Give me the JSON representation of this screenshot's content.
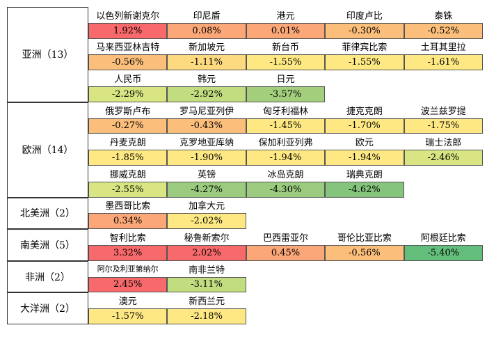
{
  "colors": {
    "red": "#f8696b",
    "orange": "#fba777",
    "light_orange": "#fbbf7b",
    "yellow": "#fde883",
    "yellow_green": "#d9e582",
    "green": "#9bcb7f",
    "mid_green": "#84c47c",
    "dark_green": "#63be7b"
  },
  "regions": [
    {
      "label": "亚洲（13）",
      "rows": [
        [
          {
            "name": "以色列新谢克尔",
            "value": "1.92%",
            "color": "#f8696b"
          },
          {
            "name": "印尼盾",
            "value": "0.08%",
            "color": "#fba777"
          },
          {
            "name": "港元",
            "value": "0.01%",
            "color": "#fba777"
          },
          {
            "name": "印度卢比",
            "value": "-0.30%",
            "color": "#fbbf7b"
          },
          {
            "name": "泰铢",
            "value": "-0.52%",
            "color": "#fbbf7b"
          }
        ],
        [
          {
            "name": "马来西亚林吉特",
            "value": "-0.56%",
            "color": "#fbbf7b"
          },
          {
            "name": "新加坡元",
            "value": "-1.11%",
            "color": "#fdd980"
          },
          {
            "name": "新台币",
            "value": "-1.55%",
            "color": "#fde883"
          },
          {
            "name": "菲律宾比索",
            "value": "-1.55%",
            "color": "#fde883"
          },
          {
            "name": "土耳其里拉",
            "value": "-1.61%",
            "color": "#fde883"
          }
        ],
        [
          {
            "name": "人民币",
            "value": "-2.29%",
            "color": "#d9e582"
          },
          {
            "name": "韩元",
            "value": "-2.92%",
            "color": "#c2dc80"
          },
          {
            "name": "日元",
            "value": "-3.57%",
            "color": "#a3cf7d"
          }
        ]
      ]
    },
    {
      "label": "欧洲（14）",
      "rows": [
        [
          {
            "name": "俄罗斯卢布",
            "value": "-0.27%",
            "color": "#fbbf7b"
          },
          {
            "name": "罗马尼亚列伊",
            "value": "-0.43%",
            "color": "#fbbf7b"
          },
          {
            "name": "匈牙利福林",
            "value": "-1.45%",
            "color": "#fde883"
          },
          {
            "name": "捷克克朗",
            "value": "-1.70%",
            "color": "#fde883"
          },
          {
            "name": "波兰兹罗提",
            "value": "-1.75%",
            "color": "#fde883"
          }
        ],
        [
          {
            "name": "丹麦克朗",
            "value": "-1.85%",
            "color": "#fde883"
          },
          {
            "name": "克罗地亚库纳",
            "value": "-1.90%",
            "color": "#fde883"
          },
          {
            "name": "保加利亚列弗",
            "value": "-1.94%",
            "color": "#fde883"
          },
          {
            "name": "欧元",
            "value": "-1.94%",
            "color": "#fde883"
          },
          {
            "name": "瑞士法郎",
            "value": "-2.46%",
            "color": "#d9e582"
          }
        ],
        [
          {
            "name": "挪威克朗",
            "value": "-2.55%",
            "color": "#d9e582"
          },
          {
            "name": "英镑",
            "value": "-4.27%",
            "color": "#9bcb7f"
          },
          {
            "name": "冰岛克朗",
            "value": "-4.30%",
            "color": "#9bcb7f"
          },
          {
            "name": "瑞典克朗",
            "value": "-4.62%",
            "color": "#84c47c"
          }
        ]
      ]
    },
    {
      "label": "北美洲（2）",
      "rows": [
        [
          {
            "name": "墨西哥比索",
            "value": "0.34%",
            "color": "#fba777"
          },
          {
            "name": "加拿大元",
            "value": "-2.02%",
            "color": "#fde883"
          }
        ]
      ]
    },
    {
      "label": "南美洲（5）",
      "rows": [
        [
          {
            "name": "智利比索",
            "value": "3.32%",
            "color": "#f8696b"
          },
          {
            "name": "秘鲁新索尔",
            "value": "2.02%",
            "color": "#f8696b"
          },
          {
            "name": "巴西雷亚尔",
            "value": "0.45%",
            "color": "#fba777"
          },
          {
            "name": "哥伦比亚比索",
            "value": "-0.56%",
            "color": "#fbbf7b"
          },
          {
            "name": "阿根廷比索",
            "value": "-5.40%",
            "color": "#63be7b"
          }
        ]
      ]
    },
    {
      "label": "非洲（2）",
      "rows": [
        [
          {
            "name": "阿尔及利亚第纳尔",
            "value": "2.45%",
            "color": "#f8696b",
            "small": true
          },
          {
            "name": "南非兰特",
            "value": "-3.11%",
            "color": "#c2dc80"
          }
        ]
      ]
    },
    {
      "label": "大洋洲（2）",
      "rows": [
        [
          {
            "name": "澳元",
            "value": "-1.57%",
            "color": "#fde883"
          },
          {
            "name": "新西兰元",
            "value": "-2.18%",
            "color": "#fde883"
          }
        ]
      ]
    }
  ]
}
